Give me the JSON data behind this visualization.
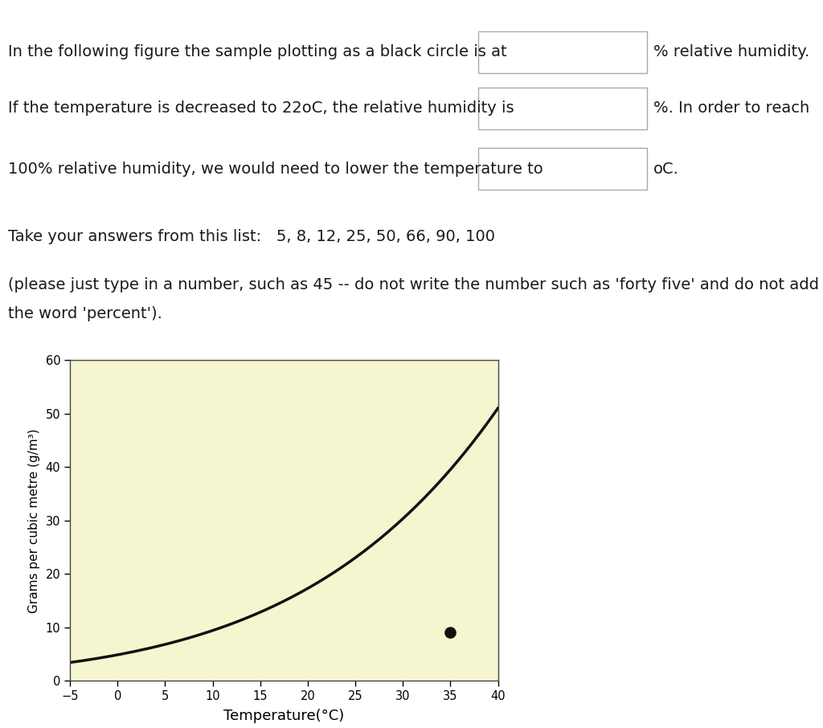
{
  "xlabel": "Temperature(°C)",
  "ylabel": "Grams per cubic metre (g/m³)",
  "xlim": [
    -5,
    40
  ],
  "ylim": [
    0,
    60
  ],
  "xticks": [
    -5,
    0,
    5,
    10,
    15,
    20,
    25,
    30,
    35,
    40
  ],
  "yticks": [
    0,
    10,
    20,
    30,
    40,
    50,
    60
  ],
  "bg_color": "#f5f5d0",
  "curve_color": "#111111",
  "dot_x": 35,
  "dot_y": 9,
  "dot_color": "#111111",
  "dot_size": 90,
  "line1": "In the following figure the sample plotting as a black circle is at",
  "line1_suffix": "% relative humidity.",
  "line2": "If the temperature is decreased to 22oC, the relative humidity is",
  "line2_suffix": "%. In order to reach",
  "line3": "100% relative humidity, we would need to lower the temperature to",
  "line3_suffix": "oC.",
  "line4": "Take your answers from this list:   5, 8, 12, 25, 50, 66, 90, 100",
  "line5a": "(please just type in a number, such as 45 -- do not write the number such as 'forty five' and do not add",
  "line5b": "the word 'percent').",
  "text_color": "#1a1a1a",
  "box_color": "#ffffff",
  "box_edge_color": "#aaaaaa",
  "fontsize": 14
}
